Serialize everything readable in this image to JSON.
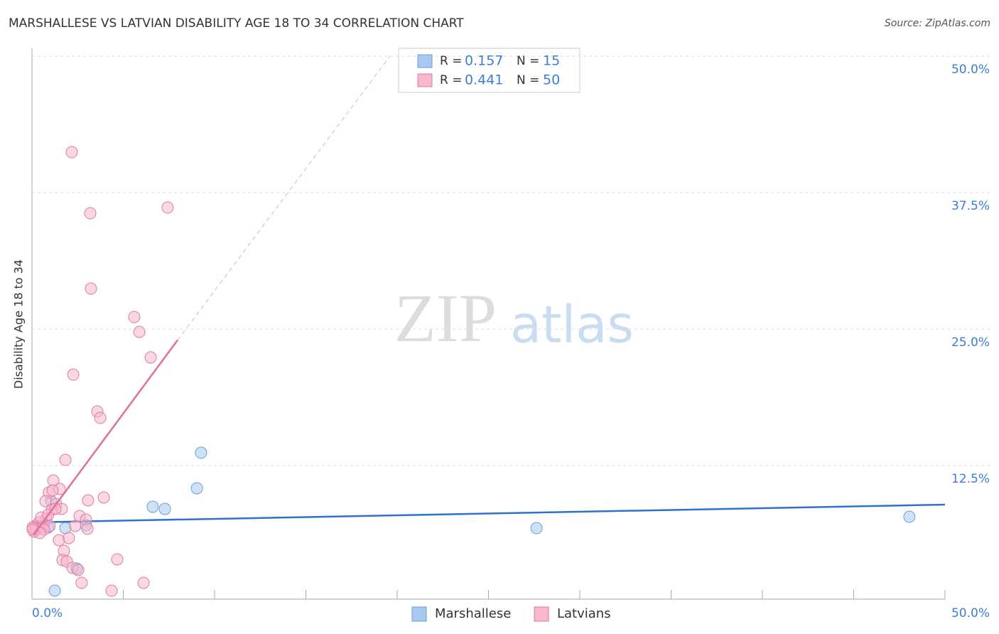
{
  "chart_data": {
    "type": "scatter",
    "title": "MARSHALLESE VS LATVIAN DISABILITY AGE 18 TO 34 CORRELATION CHART",
    "source": "Source: ZipAtlas.com",
    "y_label": "Disability Age 18 to 34",
    "watermark": [
      "ZIP",
      "atlas"
    ],
    "stat_labels": {
      "r": "R =",
      "n": "N ="
    },
    "xlim": [
      0,
      50
    ],
    "ylim": [
      0,
      50
    ],
    "xticks": [
      {
        "value": 0,
        "label": "0.0%"
      },
      {
        "value": 50,
        "label": "50.0%"
      }
    ],
    "xminor_ticks": [
      5,
      10,
      15,
      20,
      25,
      30,
      35,
      40,
      45
    ],
    "yticks": [
      {
        "value": 12.5,
        "label": "12.5%"
      },
      {
        "value": 25,
        "label": "25.0%"
      },
      {
        "value": 37.5,
        "label": "37.5%"
      },
      {
        "value": 50,
        "label": "50.0%"
      }
    ],
    "grid": true,
    "series": [
      {
        "name": "Marshallese",
        "color": "#6a9fd8",
        "fill": "#a8c8f0",
        "line_color": "#2f72c9",
        "r": 0.157,
        "n": 15,
        "x": [
          1.25,
          1.83,
          2.45,
          2.96,
          6.61,
          7.28,
          9.03,
          9.26,
          27.63,
          48.05,
          0.39,
          0.66,
          0.89,
          1.05,
          0.19
        ],
        "y": [
          1.04,
          6.77,
          3.06,
          7.03,
          8.72,
          8.53,
          10.42,
          13.67,
          6.77,
          7.81,
          6.97,
          7.16,
          6.84,
          9.24,
          6.64
        ],
        "trend": {
          "x": [
            0,
            50
          ],
          "y": [
            7.29,
            8.92
          ]
        }
      },
      {
        "name": "Latvians",
        "color": "#e27aa0",
        "fill": "#f5b8cc",
        "line_color": "#e0709a",
        "r": 0.441,
        "n": 50,
        "x": [
          2.18,
          3.19,
          7.43,
          3.23,
          5.6,
          5.88,
          6.5,
          2.26,
          3.58,
          3.74,
          1.83,
          1.17,
          0.93,
          1.52,
          1.13,
          0.74,
          1.32,
          1.09,
          1.63,
          3.07,
          3.93,
          2.61,
          2.96,
          2.37,
          3.04,
          1.48,
          2.02,
          1.75,
          1.67,
          1.91,
          2.22,
          2.53,
          2.72,
          4.67,
          4.36,
          6.11,
          0.19,
          0.39,
          0.58,
          0.78,
          0.27,
          0.12,
          0.51,
          0.97,
          0.66,
          0.04,
          0.89,
          1.28,
          0.43,
          0.04
        ],
        "y": [
          41.21,
          35.61,
          36.13,
          28.71,
          26.11,
          24.74,
          22.4,
          20.83,
          17.45,
          16.86,
          13.02,
          11.13,
          10.03,
          10.35,
          10.22,
          9.24,
          8.98,
          8.46,
          8.53,
          9.31,
          9.57,
          7.88,
          7.55,
          6.97,
          6.71,
          5.66,
          5.86,
          4.69,
          3.84,
          3.71,
          3.13,
          2.93,
          1.76,
          3.91,
          1.04,
          1.76,
          6.97,
          7.29,
          6.84,
          7.62,
          6.64,
          6.45,
          7.75,
          6.97,
          6.64,
          6.84,
          8.01,
          8.53,
          6.32,
          6.64
        ],
        "trend": {
          "x": [
            0.1,
            7.98,
            19.6
          ],
          "y": [
            6.2,
            24.0,
            50.0
          ]
        }
      }
    ]
  }
}
